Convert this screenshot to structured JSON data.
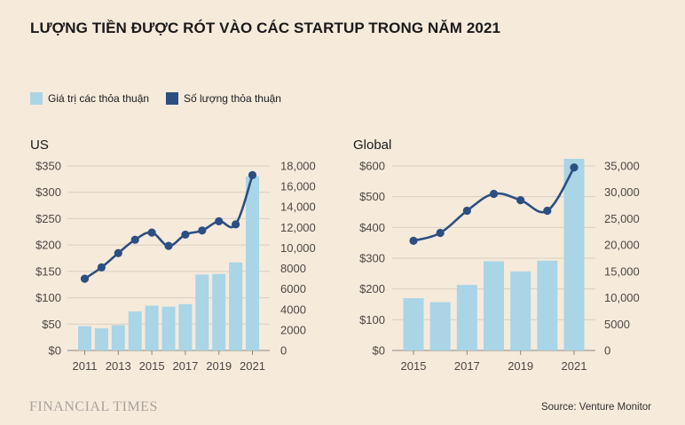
{
  "title": "LƯỢNG TIỀN ĐƯỢC RÓT VÀO CÁC STARTUP TRONG NĂM 2021",
  "legend": {
    "bars_label": "Giá trị các thỏa thuận",
    "line_label": "Số lượng thỏa thuận"
  },
  "colors": {
    "bar": "#a9d5e6",
    "line": "#2b4f82",
    "grid": "#d9cec2",
    "background": "#f6eadb"
  },
  "footer": {
    "logo": "FINANCIAL TIMES",
    "source": "Source: Venture Monitor"
  },
  "chart_data": [
    {
      "type": "bar",
      "title": "US",
      "categories": [
        "2011",
        "2012",
        "2013",
        "2014",
        "2015",
        "2016",
        "2017",
        "2018",
        "2019",
        "2020",
        "2021"
      ],
      "x_tick_labels": [
        "2011",
        "2013",
        "2015",
        "2017",
        "2019",
        "2021"
      ],
      "series": [
        {
          "name": "Giá trị các thỏa thuận",
          "type": "bar",
          "axis": "left",
          "values": [
            46,
            42,
            48,
            74,
            85,
            83,
            88,
            144,
            145,
            167,
            330
          ]
        },
        {
          "name": "Số lượng thỏa thuận",
          "type": "line",
          "axis": "right",
          "values": [
            7000,
            8100,
            9500,
            10800,
            11500,
            10200,
            11300,
            11700,
            12600,
            12300,
            17100
          ]
        }
      ],
      "left_axis": {
        "min": 0,
        "max": 350,
        "ticks": [
          0,
          50,
          100,
          150,
          200,
          250,
          300,
          350
        ],
        "tick_labels": [
          "$0",
          "$50",
          "$100",
          "$150",
          "$200",
          "$250",
          "$300",
          "$350"
        ]
      },
      "right_axis": {
        "min": 0,
        "max": 18000,
        "ticks": [
          0,
          2000,
          4000,
          6000,
          8000,
          10000,
          12000,
          14000,
          16000,
          18000
        ],
        "tick_labels": [
          "0",
          "2000",
          "4000",
          "6000",
          "8000",
          "10,000",
          "12,000",
          "14,000",
          "16,000",
          "18,000"
        ]
      },
      "grid": true
    },
    {
      "type": "bar",
      "title": "Global",
      "categories": [
        "2015",
        "2016",
        "2017",
        "2018",
        "2019",
        "2020",
        "2021"
      ],
      "x_tick_labels": [
        "2015",
        "2017",
        "2019",
        "2021"
      ],
      "series": [
        {
          "name": "Giá trị các thỏa thuận",
          "type": "bar",
          "axis": "left",
          "values": [
            170,
            157,
            213,
            290,
            257,
            292,
            623
          ]
        },
        {
          "name": "Số lượng thỏa thuận",
          "type": "line",
          "axis": "right",
          "values": [
            20800,
            22300,
            26500,
            29700,
            28500,
            26500,
            34700
          ]
        }
      ],
      "left_axis": {
        "min": 0,
        "max": 600,
        "ticks": [
          0,
          100,
          200,
          300,
          400,
          500,
          600
        ],
        "tick_labels": [
          "$0",
          "$100",
          "$200",
          "$300",
          "$400",
          "$500",
          "$600"
        ]
      },
      "right_axis": {
        "min": 0,
        "max": 35000,
        "ticks": [
          0,
          5000,
          10000,
          15000,
          20000,
          25000,
          30000,
          35000
        ],
        "tick_labels": [
          "0",
          "5000",
          "10,000",
          "15,000",
          "20,000",
          "25,000",
          "30,000",
          "35,000"
        ]
      },
      "grid": true
    }
  ]
}
